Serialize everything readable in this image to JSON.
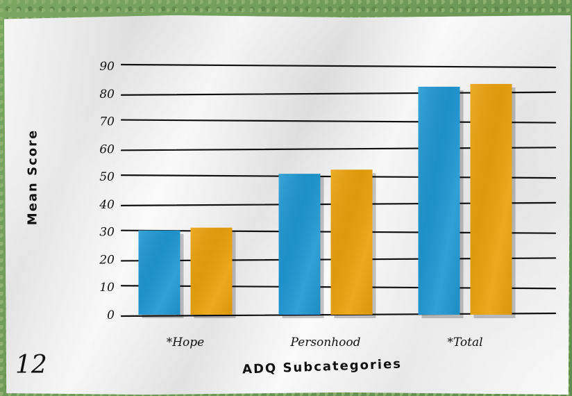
{
  "page_number": "12",
  "chart_data": {
    "type": "bar",
    "categories": [
      "*Hope",
      "Personhood",
      "*Total"
    ],
    "series": [
      {
        "values": [
          30.5,
          51,
          82.5
        ]
      },
      {
        "values": [
          31.5,
          52.5,
          83.5
        ]
      }
    ],
    "colors": [
      "#1f98d3",
      "#eba20c"
    ],
    "ylabel": "Mean Score",
    "xlabel": "ADQ Subcategories",
    "ylim": [
      0,
      90
    ],
    "yticks": [
      0,
      10,
      20,
      30,
      40,
      50,
      60,
      70,
      80,
      90
    ],
    "grid": true
  }
}
